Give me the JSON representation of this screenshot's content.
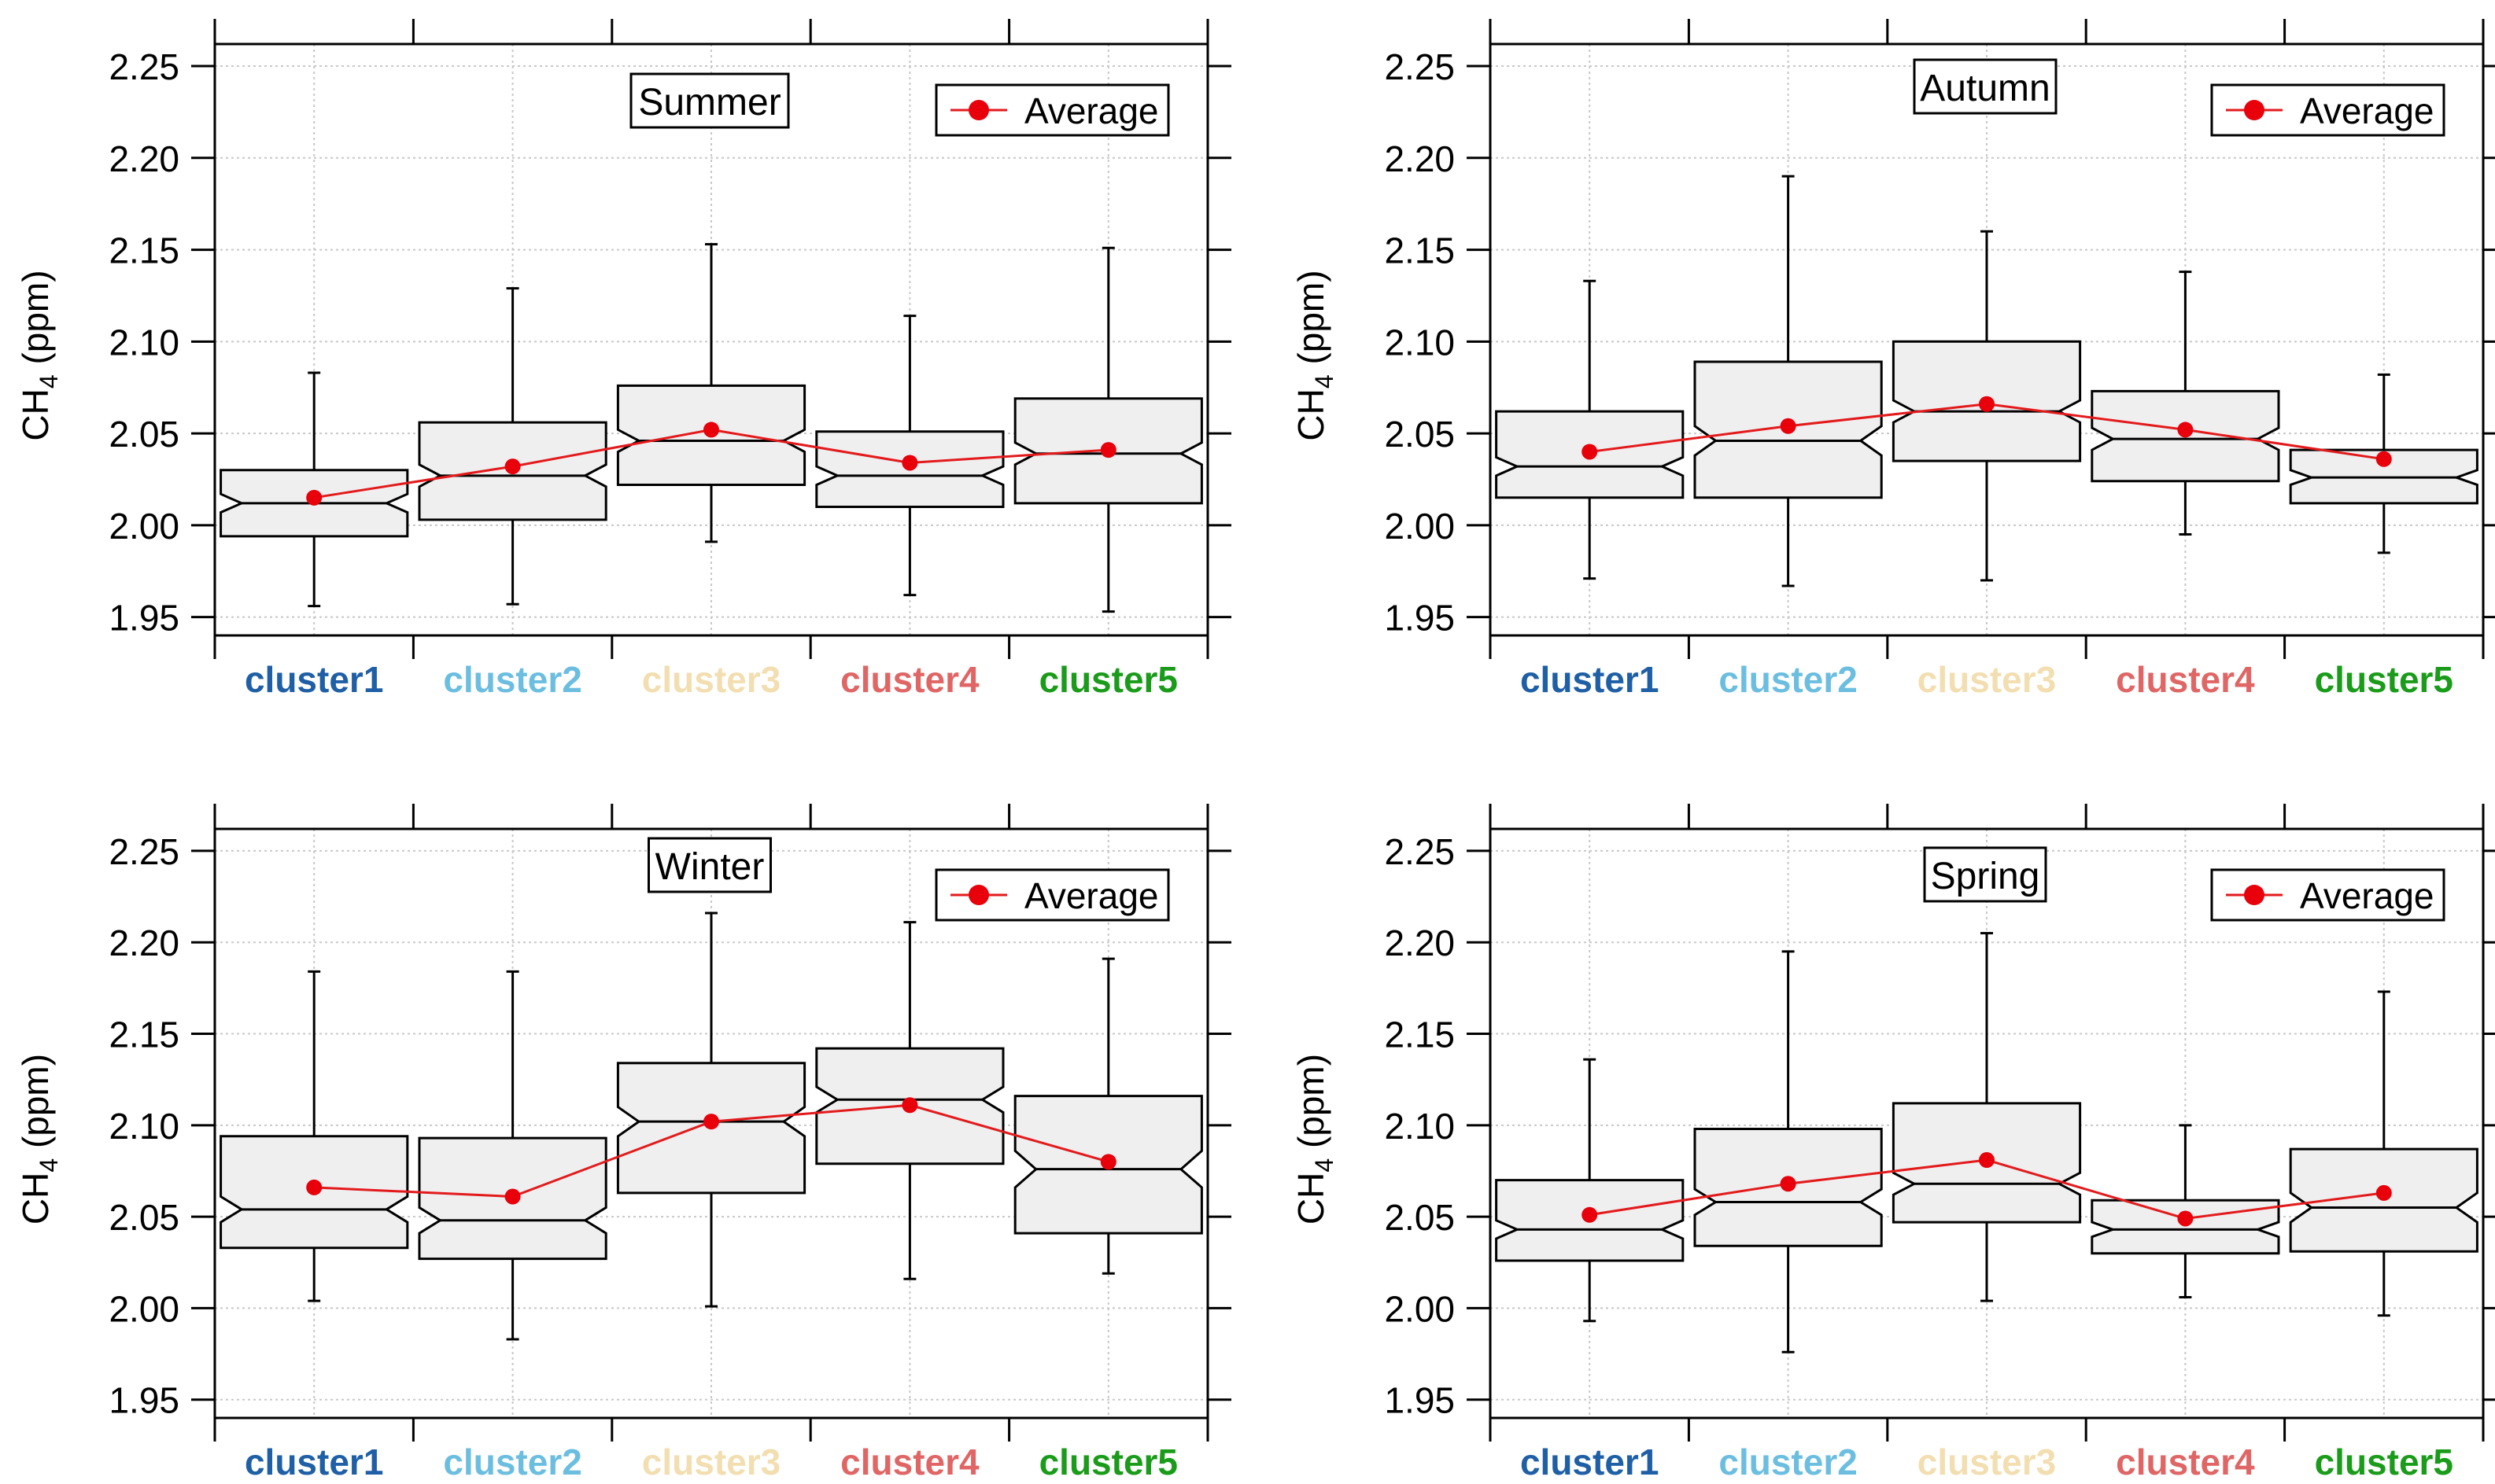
{
  "figure": {
    "colors": {
      "box_fill": "#efefef",
      "box_stroke": "#000000",
      "average_line": "#e31a1c",
      "average_marker": "#e8000b",
      "grid": "#c8c8c8"
    }
  },
  "chart_data": [
    {
      "type": "boxplot",
      "title": "Summer",
      "ylabel": "CH4 (ppm)",
      "ylabel_main": "CH",
      "ylabel_sub": "4",
      "ylabel_unit": " (ppm)",
      "ylim": [
        1.94,
        2.262
      ],
      "yticks": [
        1.95,
        2.0,
        2.05,
        2.1,
        2.15,
        2.2,
        2.25
      ],
      "ytick_labels": [
        "1.95",
        "2.00",
        "2.05",
        "2.10",
        "2.15",
        "2.20",
        "2.25"
      ],
      "legend": "Average",
      "legend_position": "top-right",
      "title_position": "top-center",
      "grid": true,
      "categories": [
        "cluster1",
        "cluster2",
        "cluster3",
        "cluster4",
        "cluster5"
      ],
      "category_colors": [
        "#1f5fa6",
        "#6bbee0",
        "#f2deb0",
        "#e06666",
        "#1a9c1a"
      ],
      "boxes": [
        {
          "whisker_low": 1.956,
          "q1": 1.994,
          "median": 2.012,
          "q3": 2.03,
          "whisker_high": 2.083,
          "notch_low": 2.007,
          "notch_high": 2.017
        },
        {
          "whisker_low": 1.957,
          "q1": 2.003,
          "median": 2.027,
          "q3": 2.056,
          "whisker_high": 2.129,
          "notch_low": 2.021,
          "notch_high": 2.033
        },
        {
          "whisker_low": 1.991,
          "q1": 2.022,
          "median": 2.046,
          "q3": 2.076,
          "whisker_high": 2.153,
          "notch_low": 2.04,
          "notch_high": 2.052
        },
        {
          "whisker_low": 1.962,
          "q1": 2.01,
          "median": 2.027,
          "q3": 2.051,
          "whisker_high": 2.114,
          "notch_low": 2.022,
          "notch_high": 2.032
        },
        {
          "whisker_low": 1.953,
          "q1": 2.012,
          "median": 2.039,
          "q3": 2.069,
          "whisker_high": 2.151,
          "notch_low": 2.033,
          "notch_high": 2.045
        }
      ],
      "average": [
        2.015,
        2.032,
        2.052,
        2.034,
        2.041
      ]
    },
    {
      "type": "boxplot",
      "title": "Autumn",
      "ylabel": "CH4 (ppm)",
      "ylabel_main": "CH",
      "ylabel_sub": "4",
      "ylabel_unit": " (ppm)",
      "ylim": [
        1.94,
        2.262
      ],
      "yticks": [
        1.95,
        2.0,
        2.05,
        2.1,
        2.15,
        2.2,
        2.25
      ],
      "ytick_labels": [
        "1.95",
        "2.00",
        "2.05",
        "2.10",
        "2.15",
        "2.20",
        "2.25"
      ],
      "legend": "Average",
      "legend_position": "top-right",
      "title_position": "top-center",
      "grid": true,
      "categories": [
        "cluster1",
        "cluster2",
        "cluster3",
        "cluster4",
        "cluster5"
      ],
      "category_colors": [
        "#1f5fa6",
        "#6bbee0",
        "#f2deb0",
        "#e06666",
        "#1a9c1a"
      ],
      "boxes": [
        {
          "whisker_low": 1.971,
          "q1": 2.015,
          "median": 2.032,
          "q3": 2.062,
          "whisker_high": 2.133,
          "notch_low": 2.027,
          "notch_high": 2.037
        },
        {
          "whisker_low": 1.967,
          "q1": 2.015,
          "median": 2.046,
          "q3": 2.089,
          "whisker_high": 2.19,
          "notch_low": 2.038,
          "notch_high": 2.054
        },
        {
          "whisker_low": 1.97,
          "q1": 2.035,
          "median": 2.062,
          "q3": 2.1,
          "whisker_high": 2.16,
          "notch_low": 2.056,
          "notch_high": 2.068
        },
        {
          "whisker_low": 1.995,
          "q1": 2.024,
          "median": 2.047,
          "q3": 2.073,
          "whisker_high": 2.138,
          "notch_low": 2.041,
          "notch_high": 2.053
        },
        {
          "whisker_low": 1.985,
          "q1": 2.012,
          "median": 2.026,
          "q3": 2.041,
          "whisker_high": 2.082,
          "notch_low": 2.022,
          "notch_high": 2.03
        }
      ],
      "average": [
        2.04,
        2.054,
        2.066,
        2.052,
        2.036
      ]
    },
    {
      "type": "boxplot",
      "title": "Winter",
      "ylabel": "CH4 (ppm)",
      "ylabel_main": "CH",
      "ylabel_sub": "4",
      "ylabel_unit": " (ppm)",
      "ylim": [
        1.94,
        2.262
      ],
      "yticks": [
        1.95,
        2.0,
        2.05,
        2.1,
        2.15,
        2.2,
        2.25
      ],
      "ytick_labels": [
        "1.95",
        "2.00",
        "2.05",
        "2.10",
        "2.15",
        "2.20",
        "2.25"
      ],
      "legend": "Average",
      "legend_position": "top-right",
      "title_position": "top-center",
      "grid": true,
      "categories": [
        "cluster1",
        "cluster2",
        "cluster3",
        "cluster4",
        "cluster5"
      ],
      "category_colors": [
        "#1f5fa6",
        "#6bbee0",
        "#f2deb0",
        "#e06666",
        "#1a9c1a"
      ],
      "boxes": [
        {
          "whisker_low": 2.004,
          "q1": 2.033,
          "median": 2.054,
          "q3": 2.094,
          "whisker_high": 2.184,
          "notch_low": 2.047,
          "notch_high": 2.061
        },
        {
          "whisker_low": 1.983,
          "q1": 2.027,
          "median": 2.048,
          "q3": 2.093,
          "whisker_high": 2.184,
          "notch_low": 2.041,
          "notch_high": 2.055
        },
        {
          "whisker_low": 2.001,
          "q1": 2.063,
          "median": 2.102,
          "q3": 2.134,
          "whisker_high": 2.216,
          "notch_low": 2.094,
          "notch_high": 2.11
        },
        {
          "whisker_low": 2.016,
          "q1": 2.079,
          "median": 2.114,
          "q3": 2.142,
          "whisker_high": 2.211,
          "notch_low": 2.107,
          "notch_high": 2.121
        },
        {
          "whisker_low": 2.019,
          "q1": 2.041,
          "median": 2.076,
          "q3": 2.116,
          "whisker_high": 2.191,
          "notch_low": 2.066,
          "notch_high": 2.086
        }
      ],
      "average": [
        2.066,
        2.061,
        2.102,
        2.111,
        2.08
      ]
    },
    {
      "type": "boxplot",
      "title": "Spring",
      "ylabel": "CH4 (ppm)",
      "ylabel_main": "CH",
      "ylabel_sub": "4",
      "ylabel_unit": " (ppm)",
      "ylim": [
        1.94,
        2.262
      ],
      "yticks": [
        1.95,
        2.0,
        2.05,
        2.1,
        2.15,
        2.2,
        2.25
      ],
      "ytick_labels": [
        "1.95",
        "2.00",
        "2.05",
        "2.10",
        "2.15",
        "2.20",
        "2.25"
      ],
      "legend": "Average",
      "legend_position": "top-right",
      "title_position": "top-center",
      "grid": true,
      "categories": [
        "cluster1",
        "cluster2",
        "cluster3",
        "cluster4",
        "cluster5"
      ],
      "category_colors": [
        "#1f5fa6",
        "#6bbee0",
        "#f2deb0",
        "#e06666",
        "#1a9c1a"
      ],
      "boxes": [
        {
          "whisker_low": 1.993,
          "q1": 2.026,
          "median": 2.043,
          "q3": 2.07,
          "whisker_high": 2.136,
          "notch_low": 2.038,
          "notch_high": 2.048
        },
        {
          "whisker_low": 1.976,
          "q1": 2.034,
          "median": 2.058,
          "q3": 2.098,
          "whisker_high": 2.195,
          "notch_low": 2.051,
          "notch_high": 2.065
        },
        {
          "whisker_low": 2.004,
          "q1": 2.047,
          "median": 2.068,
          "q3": 2.112,
          "whisker_high": 2.205,
          "notch_low": 2.062,
          "notch_high": 2.074
        },
        {
          "whisker_low": 2.006,
          "q1": 2.03,
          "median": 2.043,
          "q3": 2.059,
          "whisker_high": 2.1,
          "notch_low": 2.039,
          "notch_high": 2.047
        },
        {
          "whisker_low": 1.996,
          "q1": 2.031,
          "median": 2.055,
          "q3": 2.087,
          "whisker_high": 2.173,
          "notch_low": 2.047,
          "notch_high": 2.063
        }
      ],
      "average": [
        2.051,
        2.068,
        2.081,
        2.049,
        2.063
      ]
    }
  ]
}
